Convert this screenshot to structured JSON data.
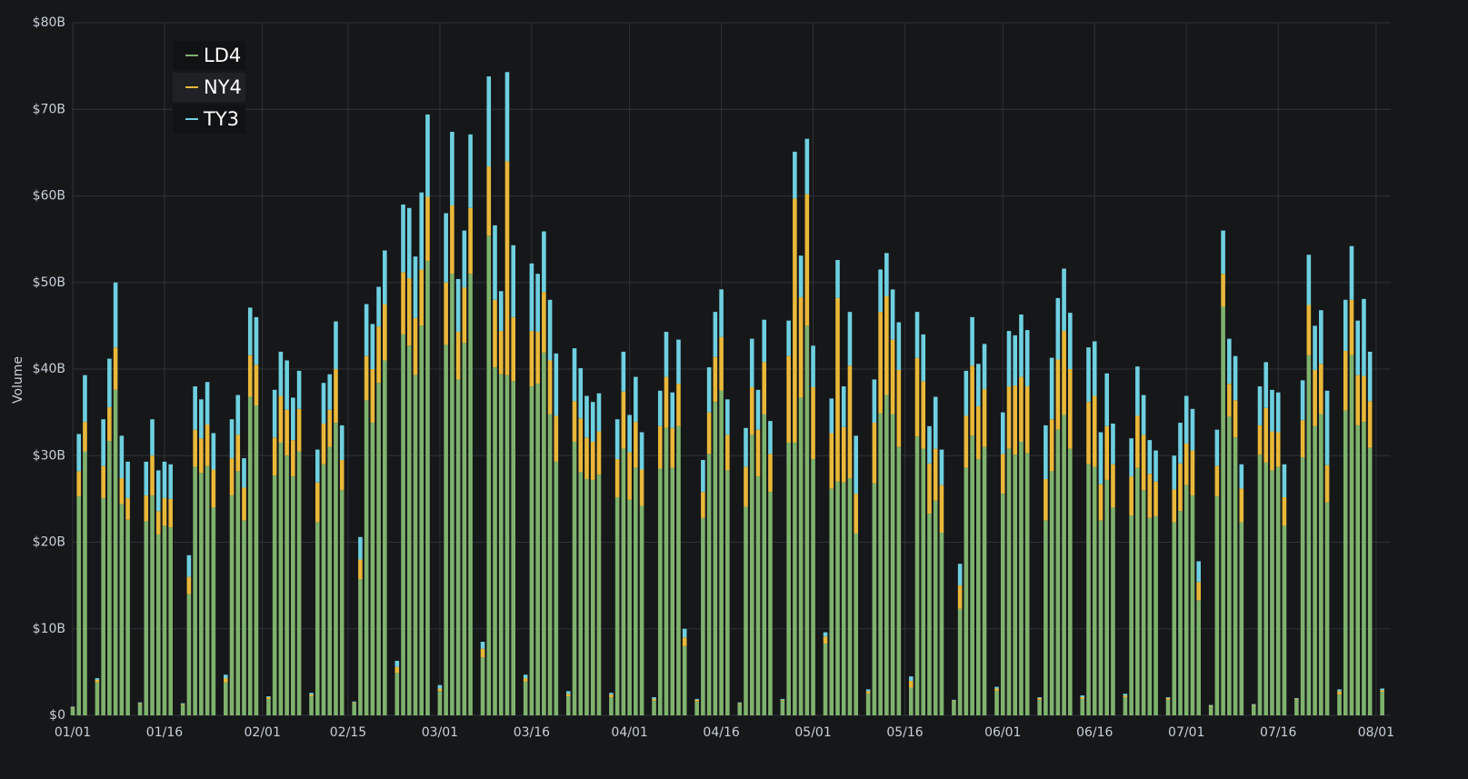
{
  "chart_data": {
    "type": "stacked-bar",
    "y_label": "Volume",
    "legend": "top-left",
    "grid": true,
    "ylim": [
      0,
      80
    ],
    "yticks": [
      {
        "value": 0,
        "label": "$0"
      },
      {
        "value": 10,
        "label": "$10B"
      },
      {
        "value": 20,
        "label": "$20B"
      },
      {
        "value": 30,
        "label": "$30B"
      },
      {
        "value": 40,
        "label": "$40B"
      },
      {
        "value": 50,
        "label": "$50B"
      },
      {
        "value": 60,
        "label": "$60B"
      },
      {
        "value": 70,
        "label": "$70B"
      },
      {
        "value": 80,
        "label": "$80B"
      }
    ],
    "categories": [
      "01/01",
      null,
      null,
      null,
      null,
      null,
      null,
      null,
      null,
      null,
      null,
      null,
      null,
      null,
      null,
      "01/16",
      null,
      null,
      null,
      null,
      null,
      null,
      null,
      null,
      null,
      null,
      null,
      null,
      null,
      null,
      null,
      "02/01",
      null,
      null,
      null,
      null,
      null,
      null,
      null,
      null,
      null,
      null,
      null,
      null,
      null,
      "02/15",
      null,
      null,
      null,
      null,
      null,
      null,
      null,
      null,
      null,
      null,
      null,
      null,
      null,
      null,
      "03/01",
      null,
      null,
      null,
      null,
      null,
      null,
      null,
      null,
      null,
      null,
      null,
      null,
      null,
      null,
      "03/16",
      null,
      null,
      null,
      null,
      null,
      null,
      null,
      null,
      null,
      null,
      null,
      null,
      null,
      null,
      null,
      "04/01",
      null,
      null,
      null,
      null,
      null,
      null,
      null,
      null,
      null,
      null,
      null,
      null,
      null,
      null,
      "04/16",
      null,
      null,
      null,
      null,
      null,
      null,
      null,
      null,
      null,
      null,
      null,
      null,
      null,
      null,
      "05/01",
      null,
      null,
      null,
      null,
      null,
      null,
      null,
      null,
      null,
      null,
      null,
      null,
      null,
      null,
      "05/16",
      null,
      null,
      null,
      null,
      null,
      null,
      null,
      null,
      null,
      null,
      null,
      null,
      null,
      null,
      null,
      "06/01",
      null,
      null,
      null,
      null,
      null,
      null,
      null,
      null,
      null,
      null,
      null,
      null,
      null,
      null,
      "06/16",
      null,
      null,
      null,
      null,
      null,
      null,
      null,
      null,
      null,
      null,
      null,
      null,
      null,
      null,
      "07/01",
      null,
      null,
      null,
      null,
      null,
      null,
      null,
      null,
      null,
      null,
      null,
      null,
      null,
      null,
      "07/16",
      null,
      null,
      null,
      null,
      null,
      null,
      null,
      null,
      null,
      null,
      null,
      null,
      null,
      null,
      null,
      "08/01",
      null
    ],
    "series": [
      {
        "name": "LD4",
        "color": "#7eb26d",
        "values": [
          0.8,
          25.3,
          30.5,
          null,
          3.8,
          25.1,
          31.7,
          37.6,
          24.4,
          22.6,
          null,
          1.3,
          22.4,
          25.4,
          20.9,
          21.9,
          21.7,
          null,
          1.2,
          14.0,
          28.7,
          28.0,
          28.8,
          24.0,
          null,
          3.8,
          25.4,
          28.2,
          22.5,
          36.8,
          35.8,
          null,
          1.9,
          27.7,
          31.5,
          30.0,
          27.6,
          30.5,
          null,
          2.2,
          22.3,
          29.0,
          31.0,
          33.8,
          26.0,
          null,
          1.4,
          15.7,
          36.4,
          33.8,
          38.4,
          41.0,
          null,
          4.9,
          44.0,
          42.7,
          39.3,
          45.0,
          52.5,
          null,
          2.8,
          42.8,
          51.0,
          38.8,
          43.0,
          51.0,
          null,
          6.7,
          55.4,
          40.2,
          39.4,
          39.3,
          38.6,
          null,
          3.9,
          38.0,
          38.3,
          41.9,
          34.8,
          29.3,
          null,
          2.2,
          31.6,
          28.1,
          27.3,
          27.2,
          27.8,
          null,
          2.1,
          25.2,
          30.8,
          24.9,
          28.6,
          24.2,
          null,
          1.7,
          28.5,
          33.2,
          28.6,
          33.4,
          8.0,
          null,
          1.6,
          22.8,
          30.2,
          36.2,
          37.5,
          28.3,
          null,
          1.3,
          24.1,
          32.4,
          27.6,
          34.8,
          25.8,
          null,
          1.7,
          31.5,
          31.5,
          36.7,
          45.0,
          29.6,
          null,
          8.3,
          26.2,
          27.0,
          26.9,
          27.4,
          21.0,
          null,
          2.5,
          26.8,
          34.9,
          37.0,
          34.8,
          31.0,
          null,
          3.2,
          32.2,
          30.8,
          23.3,
          24.8,
          21.1,
          null,
          1.6,
          12.3,
          28.6,
          32.3,
          29.6,
          31.0,
          null,
          2.8,
          25.6,
          30.8,
          30.1,
          31.6,
          30.3,
          null,
          1.8,
          22.5,
          28.2,
          33.0,
          34.7,
          30.8,
          null,
          1.9,
          29.0,
          28.7,
          22.5,
          27.2,
          24.0,
          null,
          2.1,
          23.1,
          28.6,
          26.0,
          22.8,
          23.0,
          null,
          1.8,
          22.3,
          23.6,
          26.6,
          25.4,
          13.3,
          null,
          1.0,
          25.3,
          47.2,
          34.5,
          32.1,
          22.3,
          null,
          1.1,
          30.1,
          29.2,
          28.3,
          28.7,
          21.9,
          null,
          1.8,
          29.8,
          41.6,
          33.4,
          34.8,
          24.6,
          null,
          2.4,
          35.2,
          41.6,
          33.5,
          33.9,
          30.9,
          null,
          2.7
        ]
      },
      {
        "name": "NY4",
        "color": "#eab839",
        "values": [
          0.1,
          2.9,
          3.4,
          null,
          0.3,
          3.7,
          3.9,
          4.9,
          3.0,
          2.5,
          null,
          0.1,
          3.0,
          4.6,
          2.7,
          3.2,
          3.3,
          null,
          0.1,
          2.0,
          4.3,
          4.0,
          4.8,
          4.4,
          null,
          0.5,
          4.3,
          4.2,
          3.8,
          4.8,
          4.7,
          null,
          0.2,
          4.4,
          5.4,
          5.3,
          4.2,
          4.9,
          null,
          0.2,
          4.6,
          4.7,
          4.3,
          6.2,
          3.5,
          null,
          0.1,
          2.3,
          5.1,
          6.2,
          6.5,
          6.5,
          null,
          0.7,
          7.2,
          7.8,
          6.6,
          6.5,
          7.4,
          null,
          0.3,
          7.2,
          7.9,
          5.5,
          6.4,
          7.6,
          null,
          1.0,
          8.0,
          7.8,
          5.0,
          24.7,
          7.4,
          null,
          0.4,
          6.4,
          6.0,
          7.0,
          6.2,
          5.3,
          null,
          0.3,
          4.7,
          6.2,
          4.8,
          4.4,
          5.0,
          null,
          0.3,
          4.4,
          6.6,
          5.5,
          5.3,
          4.2,
          null,
          0.2,
          4.9,
          5.9,
          4.6,
          4.9,
          1.0,
          null,
          0.2,
          3.0,
          4.8,
          5.2,
          6.2,
          4.1,
          null,
          0.1,
          4.6,
          5.5,
          5.4,
          6.0,
          4.4,
          null,
          0.1,
          10.0,
          28.2,
          11.6,
          15.2,
          8.3,
          null,
          0.8,
          6.4,
          21.2,
          6.4,
          13.0,
          4.6,
          null,
          0.3,
          7.0,
          11.7,
          11.4,
          8.6,
          8.9,
          null,
          0.8,
          9.1,
          7.8,
          5.8,
          6.0,
          5.5,
          null,
          0.1,
          2.7,
          6.0,
          8.1,
          6.1,
          6.7,
          null,
          0.3,
          4.6,
          7.2,
          8.0,
          7.5,
          7.7,
          null,
          0.2,
          4.8,
          6.0,
          8.1,
          9.7,
          9.2,
          null,
          0.2,
          7.2,
          8.2,
          4.2,
          6.2,
          5.0,
          null,
          0.2,
          4.5,
          6.0,
          6.4,
          5.1,
          4.0,
          null,
          0.2,
          3.8,
          5.5,
          4.8,
          5.2,
          2.1,
          null,
          0.1,
          3.5,
          3.8,
          3.8,
          4.3,
          3.9,
          null,
          0.1,
          3.4,
          6.3,
          4.5,
          4.0,
          3.3,
          null,
          0.1,
          4.3,
          5.8,
          6.5,
          5.8,
          4.3,
          null,
          0.4,
          6.9,
          6.4,
          5.8,
          5.3,
          5.4,
          null,
          0.2
        ]
      },
      {
        "name": "TY3",
        "color": "#6ed0e0",
        "values": [
          0.1,
          4.3,
          5.4,
          null,
          0.2,
          5.4,
          5.6,
          7.5,
          4.9,
          4.2,
          null,
          0.1,
          3.9,
          4.2,
          4.7,
          4.2,
          4.0,
          null,
          0.1,
          2.5,
          5.0,
          4.5,
          4.9,
          4.2,
          null,
          0.4,
          4.5,
          4.6,
          3.4,
          5.5,
          5.5,
          null,
          0.1,
          5.5,
          5.1,
          5.7,
          4.9,
          4.4,
          null,
          0.2,
          3.8,
          4.7,
          4.1,
          5.5,
          4.0,
          null,
          0.1,
          2.6,
          6.0,
          5.2,
          4.6,
          6.2,
          null,
          0.7,
          7.8,
          8.1,
          7.1,
          8.9,
          9.5,
          null,
          0.4,
          8.0,
          8.5,
          6.1,
          6.6,
          8.5,
          null,
          0.8,
          10.4,
          8.6,
          4.6,
          10.3,
          8.3,
          null,
          0.4,
          7.8,
          6.7,
          7.0,
          7.0,
          7.2,
          null,
          0.3,
          6.1,
          5.8,
          4.8,
          4.6,
          4.4,
          null,
          0.2,
          4.6,
          4.6,
          4.3,
          5.2,
          4.3,
          null,
          0.2,
          4.1,
          5.2,
          4.1,
          5.1,
          1.0,
          null,
          0.1,
          3.7,
          5.2,
          5.2,
          5.5,
          4.1,
          null,
          0.1,
          4.5,
          5.6,
          4.6,
          4.9,
          3.8,
          null,
          0.1,
          4.1,
          5.4,
          4.8,
          6.4,
          4.8,
          null,
          0.5,
          4.0,
          4.4,
          4.7,
          6.2,
          6.7,
          null,
          0.2,
          5.0,
          4.9,
          5.0,
          5.8,
          5.5,
          null,
          0.5,
          5.3,
          5.4,
          4.3,
          6.0,
          4.1,
          null,
          0.1,
          2.5,
          5.2,
          5.6,
          4.9,
          5.2,
          null,
          0.2,
          4.8,
          6.4,
          5.8,
          7.2,
          6.5,
          null,
          0.1,
          6.2,
          7.1,
          7.1,
          7.2,
          6.5,
          null,
          0.2,
          6.3,
          6.3,
          6.0,
          6.1,
          4.7,
          null,
          0.2,
          4.4,
          5.7,
          4.6,
          3.9,
          3.6,
          null,
          0.1,
          3.9,
          4.7,
          5.5,
          4.8,
          2.4,
          null,
          0.1,
          4.2,
          5.0,
          5.2,
          5.1,
          2.8,
          null,
          0.1,
          4.5,
          5.3,
          4.8,
          4.6,
          3.8,
          null,
          0.1,
          4.6,
          5.8,
          5.1,
          6.2,
          8.6,
          null,
          0.2,
          5.9,
          6.2,
          6.3,
          8.9,
          5.7,
          null,
          0.2
        ]
      }
    ]
  }
}
